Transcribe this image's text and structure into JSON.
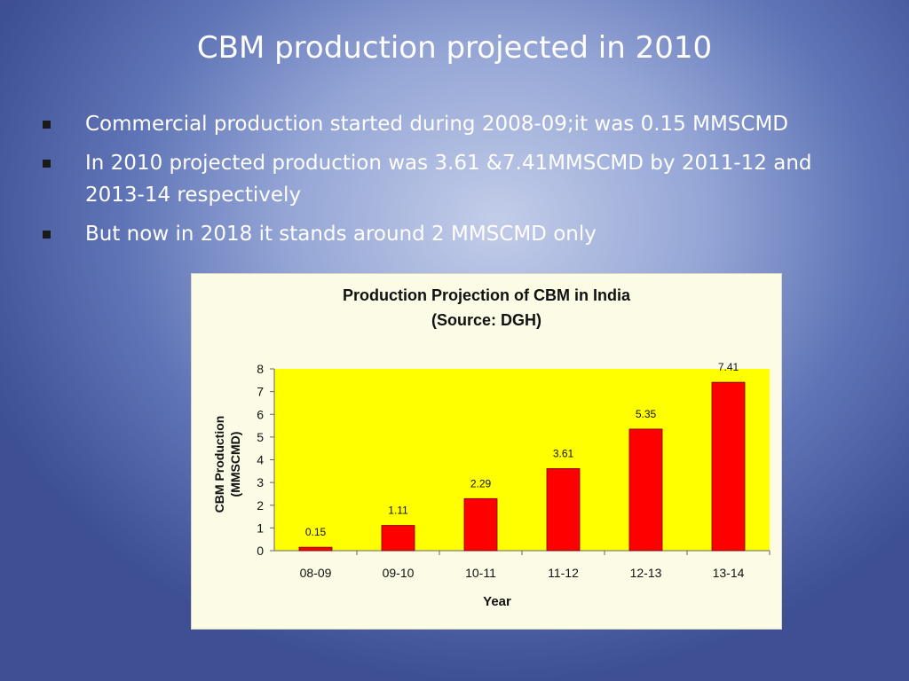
{
  "slide": {
    "title": "CBM production projected in 2010",
    "bullets": [
      "Commercial production started during 2008-09;it was 0.15 MMSCMD",
      "In 2010 projected production was 3.61 &7.41MMSCMD by 2011-12 and 2013-14 respectively",
      "But now in 2018 it stands around 2 MMSCMD only"
    ]
  },
  "colors": {
    "plot_background": "#ffff00",
    "bar": "#ff0000",
    "bar_outline": "#700000"
  },
  "chart_data": {
    "type": "bar",
    "title": "Production Projection of CBM in India",
    "subtitle": "(Source: DGH)",
    "xlabel": "Year",
    "ylabel_lines": [
      "CBM Production",
      "(MMSCMD)"
    ],
    "categories": [
      "08-09",
      "09-10",
      "10-11",
      "11-12",
      "12-13",
      "13-14"
    ],
    "values": [
      0.15,
      1.11,
      2.29,
      3.61,
      5.35,
      7.41
    ],
    "data_labels": [
      "0.15",
      "1.11",
      "2.29",
      "3.61",
      "5.35",
      "7.41"
    ],
    "ylim": [
      0,
      8
    ],
    "yticks": [
      0,
      1,
      2,
      3,
      4,
      5,
      6,
      7,
      8
    ],
    "grid": false,
    "legend": false
  }
}
